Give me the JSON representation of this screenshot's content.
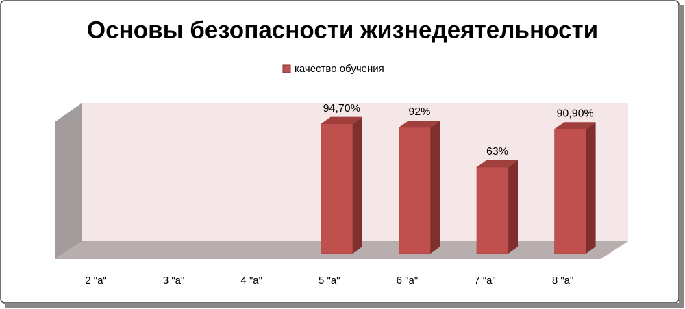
{
  "chart_data": {
    "type": "bar3d",
    "title": "Основы безопасности жизнедеятельности",
    "categories": [
      "2 \"а\"",
      "3 \"а\"",
      "4 \"а\"",
      "5 \"а\"",
      "6 \"а\"",
      "7 \"а\"",
      "8 \"а\""
    ],
    "series": [
      {
        "name": "качество обучения",
        "color": "#c0504d",
        "values": [
          null,
          null,
          null,
          94.7,
          92,
          63,
          90.9
        ],
        "value_labels": [
          null,
          null,
          null,
          "94,70%",
          "92%",
          "63%",
          "90,90%"
        ]
      }
    ]
  }
}
